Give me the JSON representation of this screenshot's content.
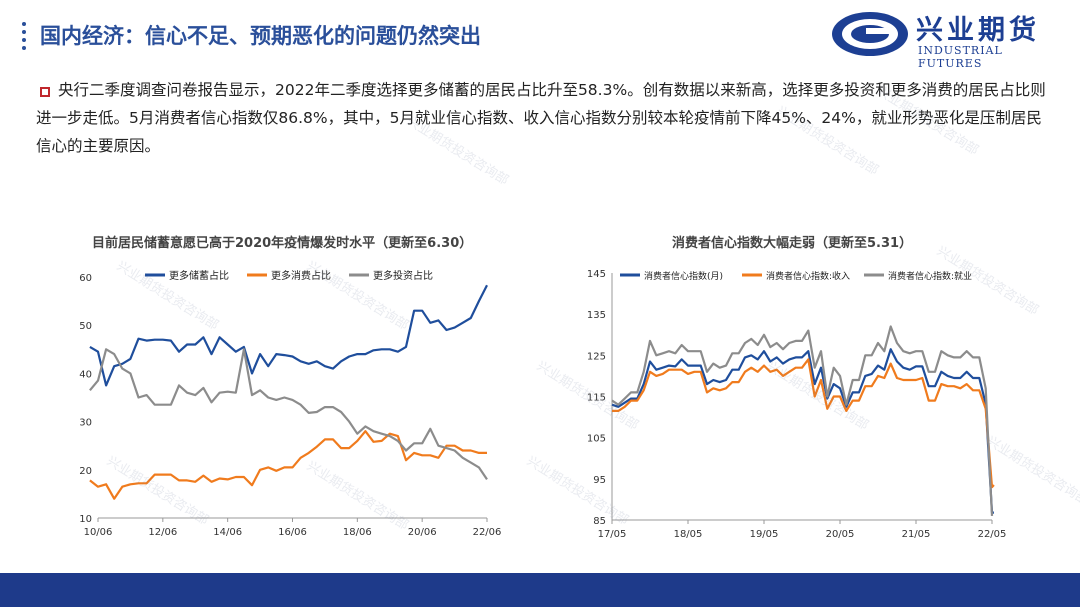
{
  "page": {
    "title": "国内经济：信心不足、预期恶化的问题仍然突出",
    "logo_cn": "兴业期货",
    "logo_en": "INDUSTRIAL FUTURES",
    "summary_line1": "央行二季度调查问卷报告显示，2022年二季度选择更多储蓄的居民占比升至58.3%。创有数据以来新高，选择更多投资和更多消费的居民占比则",
    "summary_line2": "进一步走低。5月消费者信心指数仅86.8%，其中，5月就业信心指数、收入信心指数分别较本轮疫情前下降45%、24%，就业形势恶化是压制居民",
    "summary_line3": "信心的主要原因。",
    "watermark": "兴业期货投资咨询部"
  },
  "chart_data": [
    {
      "type": "line",
      "title": "目前居民储蓄意愿已高于2020年疫情爆发时水平（更新至6.30）",
      "ylim": [
        10,
        60
      ],
      "yticks": [
        10,
        20,
        30,
        40,
        50,
        60
      ],
      "xlim": [
        2010.375,
        2022.375
      ],
      "xticks": [
        2010.375,
        2012.375,
        2014.375,
        2016.375,
        2018.375,
        2020.375,
        2022.375
      ],
      "xtick_labels": [
        "10/06",
        "12/06",
        "14/06",
        "16/06",
        "18/06",
        "20/06",
        "22/06"
      ],
      "legend_position": "top",
      "series": [
        {
          "name": "更多储蓄占比",
          "color": "#1f4e9c",
          "x": [
            2010.125,
            2010.375,
            2010.625,
            2010.875,
            2011.125,
            2011.375,
            2011.625,
            2011.875,
            2012.125,
            2012.375,
            2012.625,
            2012.875,
            2013.125,
            2013.375,
            2013.625,
            2013.875,
            2014.125,
            2014.375,
            2014.625,
            2014.875,
            2015.125,
            2015.375,
            2015.625,
            2015.875,
            2016.125,
            2016.375,
            2016.625,
            2016.875,
            2017.125,
            2017.375,
            2017.625,
            2017.875,
            2018.125,
            2018.375,
            2018.625,
            2018.875,
            2019.125,
            2019.375,
            2019.625,
            2019.875,
            2020.125,
            2020.375,
            2020.625,
            2020.875,
            2021.125,
            2021.375,
            2021.625,
            2021.875,
            2022.125,
            2022.375
          ],
          "y": [
            45.5,
            44.5,
            37.5,
            41.5,
            42,
            43,
            47.2,
            46.8,
            47,
            47,
            46.8,
            44.5,
            46,
            46,
            47.5,
            44,
            47.5,
            46,
            44.5,
            45.5,
            40,
            44,
            41.5,
            44,
            43.8,
            43.5,
            42.5,
            42,
            42.5,
            41.5,
            41,
            42.5,
            43.5,
            44,
            44,
            44.8,
            45,
            45,
            44.5,
            45.5,
            53,
            53,
            50.5,
            51,
            49,
            49.5,
            50.5,
            51.5,
            55,
            58.3
          ]
        },
        {
          "name": "更多消费占比",
          "color": "#f07b1d",
          "x": [
            2010.125,
            2010.375,
            2010.625,
            2010.875,
            2011.125,
            2011.375,
            2011.625,
            2011.875,
            2012.125,
            2012.375,
            2012.625,
            2012.875,
            2013.125,
            2013.375,
            2013.625,
            2013.875,
            2014.125,
            2014.375,
            2014.625,
            2014.875,
            2015.125,
            2015.375,
            2015.625,
            2015.875,
            2016.125,
            2016.375,
            2016.625,
            2016.875,
            2017.125,
            2017.375,
            2017.625,
            2017.875,
            2018.125,
            2018.375,
            2018.625,
            2018.875,
            2019.125,
            2019.375,
            2019.625,
            2019.875,
            2020.125,
            2020.375,
            2020.625,
            2020.875,
            2021.125,
            2021.375,
            2021.625,
            2021.875,
            2022.125,
            2022.375
          ],
          "y": [
            17.8,
            16.5,
            17,
            14,
            16.5,
            17,
            17.2,
            17.2,
            19,
            19,
            19,
            17.8,
            17.8,
            17.5,
            18.8,
            17.5,
            18.2,
            18,
            18.5,
            18.5,
            16.8,
            20,
            20.5,
            19.8,
            20.5,
            20.5,
            22.5,
            23.5,
            24.8,
            26.3,
            26.3,
            24.5,
            24.5,
            26,
            28,
            25.8,
            26,
            27.5,
            27,
            22,
            23.5,
            23,
            23,
            22.5,
            25,
            25,
            24,
            24,
            23.5,
            23.5
          ]
        },
        {
          "name": "更多投资占比",
          "color": "#8c8c8c",
          "x": [
            2010.125,
            2010.375,
            2010.625,
            2010.875,
            2011.125,
            2011.375,
            2011.625,
            2011.875,
            2012.125,
            2012.375,
            2012.625,
            2012.875,
            2013.125,
            2013.375,
            2013.625,
            2013.875,
            2014.125,
            2014.375,
            2014.625,
            2014.875,
            2015.125,
            2015.375,
            2015.625,
            2015.875,
            2016.125,
            2016.375,
            2016.625,
            2016.875,
            2017.125,
            2017.375,
            2017.625,
            2017.875,
            2018.125,
            2018.375,
            2018.625,
            2018.875,
            2019.125,
            2019.375,
            2019.625,
            2019.875,
            2020.125,
            2020.375,
            2020.625,
            2020.875,
            2021.125,
            2021.375,
            2021.625,
            2021.875,
            2022.125,
            2022.375
          ],
          "y": [
            36.5,
            38.5,
            45,
            44,
            41,
            40,
            35,
            35.5,
            33.5,
            33.5,
            33.5,
            37.5,
            36,
            35.5,
            37,
            34,
            36,
            36.2,
            36,
            45,
            35.5,
            36.5,
            35,
            34.5,
            35,
            34.5,
            33.5,
            31.8,
            32,
            33,
            33,
            32,
            30,
            27.5,
            29,
            28,
            27.5,
            27,
            26,
            24,
            25.5,
            25.5,
            28.5,
            25,
            24.5,
            24,
            22.5,
            21.5,
            20.5,
            18
          ]
        }
      ]
    },
    {
      "type": "line",
      "title": "消费者信心指数大幅走弱（更新至5.31）",
      "ylim": [
        85,
        145
      ],
      "yticks": [
        85,
        95,
        105,
        115,
        125,
        135,
        145
      ],
      "xlim": [
        2017.375,
        2022.375
      ],
      "xticks": [
        2017.375,
        2018.375,
        2019.375,
        2020.375,
        2021.375,
        2022.375
      ],
      "xtick_labels": [
        "17/05",
        "18/05",
        "19/05",
        "20/05",
        "21/05",
        "22/05"
      ],
      "legend_position": "top",
      "series": [
        {
          "name": "消费者信心指数(月)",
          "color": "#1f4e9c",
          "x": [
            2017.375,
            2017.4583,
            2017.5417,
            2017.625,
            2017.7083,
            2017.7917,
            2017.875,
            2017.9583,
            2018.0417,
            2018.125,
            2018.2083,
            2018.2917,
            2018.375,
            2018.4583,
            2018.5417,
            2018.625,
            2018.7083,
            2018.7917,
            2018.875,
            2018.9583,
            2019.0417,
            2019.125,
            2019.2083,
            2019.2917,
            2019.375,
            2019.4583,
            2019.5417,
            2019.625,
            2019.7083,
            2019.7917,
            2019.875,
            2019.9583,
            2020.0417,
            2020.125,
            2020.2083,
            2020.2917,
            2020.375,
            2020.4583,
            2020.5417,
            2020.625,
            2020.7083,
            2020.7917,
            2020.875,
            2020.9583,
            2021.0417,
            2021.125,
            2021.2083,
            2021.2917,
            2021.375,
            2021.4583,
            2021.5417,
            2021.625,
            2021.7083,
            2021.7917,
            2021.875,
            2021.9583,
            2022.0417,
            2022.125,
            2022.2083,
            2022.2917,
            2022.375,
            2022.4
          ],
          "y": [
            113,
            112.5,
            113.5,
            114.5,
            114.5,
            118,
            123.5,
            121.5,
            122,
            122.5,
            122.3,
            124,
            122.5,
            122.5,
            122.5,
            118,
            119,
            118.5,
            119,
            121.5,
            121.5,
            124.5,
            125,
            124,
            126,
            123.5,
            124.5,
            123,
            124,
            124.5,
            124.5,
            126,
            118,
            122,
            114.5,
            118,
            117,
            112.5,
            116,
            116,
            120,
            120.5,
            122.5,
            121.5,
            126.5,
            123.5,
            122,
            121.5,
            122.3,
            122.3,
            117.5,
            117.5,
            121,
            120,
            119.5,
            119.5,
            121,
            119.5,
            119.5,
            113.2,
            86.8,
            86.8
          ]
        },
        {
          "name": "消费者信心指数:收入",
          "color": "#f07b1d",
          "x": [
            2017.375,
            2017.4583,
            2017.5417,
            2017.625,
            2017.7083,
            2017.7917,
            2017.875,
            2017.9583,
            2018.0417,
            2018.125,
            2018.2083,
            2018.2917,
            2018.375,
            2018.4583,
            2018.5417,
            2018.625,
            2018.7083,
            2018.7917,
            2018.875,
            2018.9583,
            2019.0417,
            2019.125,
            2019.2083,
            2019.2917,
            2019.375,
            2019.4583,
            2019.5417,
            2019.625,
            2019.7083,
            2019.7917,
            2019.875,
            2019.9583,
            2020.0417,
            2020.125,
            2020.2083,
            2020.2917,
            2020.375,
            2020.4583,
            2020.5417,
            2020.625,
            2020.7083,
            2020.7917,
            2020.875,
            2020.9583,
            2021.0417,
            2021.125,
            2021.2083,
            2021.2917,
            2021.375,
            2021.4583,
            2021.5417,
            2021.625,
            2021.7083,
            2021.7917,
            2021.875,
            2021.9583,
            2022.0417,
            2022.125,
            2022.2083,
            2022.2917,
            2022.375,
            2022.4
          ],
          "y": [
            111.5,
            111.5,
            112.5,
            114,
            114,
            116.5,
            121,
            120,
            120.5,
            121.5,
            121.5,
            121.5,
            120.5,
            121,
            121,
            116,
            117,
            116.5,
            117,
            118.5,
            118.5,
            121,
            122,
            121,
            122.5,
            121,
            121.5,
            120,
            121,
            122,
            122,
            124,
            115,
            119,
            112,
            115,
            115,
            111.5,
            114,
            114,
            117.5,
            117.5,
            120,
            119.5,
            123,
            119.5,
            119,
            119,
            119,
            119.5,
            114,
            114,
            118,
            117.5,
            117.5,
            117,
            118,
            116.5,
            116.5,
            112,
            93,
            93.5
          ]
        },
        {
          "name": "消费者信心指数:就业",
          "color": "#8c8c8c",
          "x": [
            2017.375,
            2017.4583,
            2017.5417,
            2017.625,
            2017.7083,
            2017.7917,
            2017.875,
            2017.9583,
            2018.0417,
            2018.125,
            2018.2083,
            2018.2917,
            2018.375,
            2018.4583,
            2018.5417,
            2018.625,
            2018.7083,
            2018.7917,
            2018.875,
            2018.9583,
            2019.0417,
            2019.125,
            2019.2083,
            2019.2917,
            2019.375,
            2019.4583,
            2019.5417,
            2019.625,
            2019.7083,
            2019.7917,
            2019.875,
            2019.9583,
            2020.0417,
            2020.125,
            2020.2083,
            2020.2917,
            2020.375,
            2020.4583,
            2020.5417,
            2020.625,
            2020.7083,
            2020.7917,
            2020.875,
            2020.9583,
            2021.0417,
            2021.125,
            2021.2083,
            2021.2917,
            2021.375,
            2021.4583,
            2021.5417,
            2021.625,
            2021.7083,
            2021.7917,
            2021.875,
            2021.9583,
            2022.0417,
            2022.125,
            2022.2083,
            2022.2917,
            2022.375
          ],
          "y": [
            114,
            113,
            114.5,
            116,
            116,
            121,
            128.5,
            125,
            125.5,
            126,
            125.5,
            127.5,
            126,
            126,
            126,
            121,
            123,
            122,
            122.5,
            125.5,
            125.5,
            128,
            129,
            127.5,
            130,
            127,
            128,
            126.5,
            128,
            128.5,
            128.5,
            131,
            122,
            126,
            115,
            122,
            120,
            113,
            119,
            119,
            125,
            125,
            128,
            126,
            132,
            128,
            126,
            125.5,
            126,
            126,
            121,
            121,
            126,
            125,
            124.5,
            124.5,
            126,
            124.5,
            124.5,
            117,
            86
          ]
        }
      ]
    }
  ]
}
